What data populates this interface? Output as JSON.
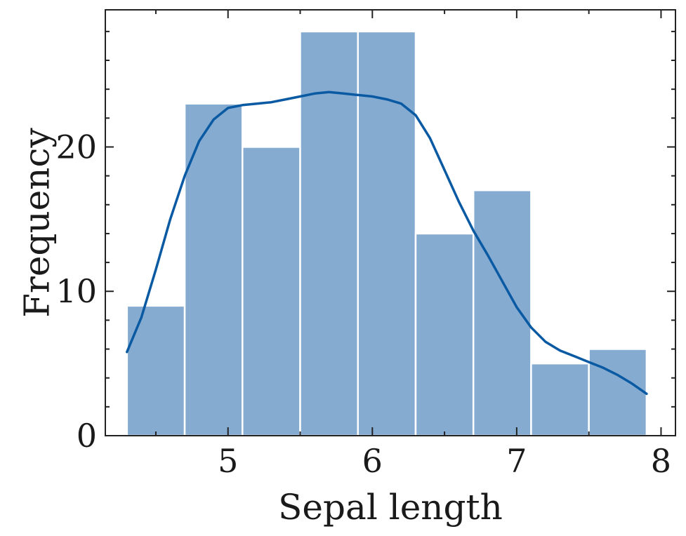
{
  "chart_data": {
    "type": "bar",
    "title": "",
    "xlabel": "Sepal length",
    "ylabel": "Frequency",
    "xlim": [
      4.15,
      8.1
    ],
    "ylim": [
      0,
      29.5
    ],
    "grid": false,
    "bin_edges": [
      4.3,
      4.7,
      5.1,
      5.5,
      5.9,
      6.3,
      6.7,
      7.1,
      7.5,
      7.9
    ],
    "values": [
      9,
      23,
      20,
      28,
      28,
      14,
      17,
      5,
      6
    ],
    "x_ticks": [
      5,
      6,
      7,
      8
    ],
    "x_tick_labels": [
      "5",
      "6",
      "7",
      "8"
    ],
    "y_ticks": [
      0,
      10,
      20
    ],
    "y_tick_labels": [
      "0",
      "10",
      "20"
    ],
    "x_minor_ticks": [
      4.5,
      5.5,
      6.5,
      7.5
    ],
    "y_minor_ticks": [
      2,
      4,
      6,
      8,
      12,
      14,
      16,
      18,
      22,
      24,
      26,
      28
    ],
    "kde": {
      "x": [
        4.3,
        4.4,
        4.5,
        4.6,
        4.7,
        4.8,
        4.9,
        5.0,
        5.1,
        5.2,
        5.3,
        5.4,
        5.5,
        5.6,
        5.7,
        5.8,
        5.9,
        6.0,
        6.1,
        6.2,
        6.3,
        6.4,
        6.5,
        6.6,
        6.7,
        6.8,
        6.9,
        7.0,
        7.1,
        7.2,
        7.3,
        7.4,
        7.5,
        7.6,
        7.7,
        7.8,
        7.9
      ],
      "y": [
        5.8,
        8.2,
        11.5,
        15.0,
        18.0,
        20.4,
        21.9,
        22.7,
        22.9,
        23.0,
        23.1,
        23.3,
        23.5,
        23.7,
        23.8,
        23.7,
        23.6,
        23.5,
        23.3,
        23.0,
        22.2,
        20.6,
        18.4,
        16.2,
        14.2,
        12.5,
        10.7,
        8.9,
        7.5,
        6.5,
        5.9,
        5.5,
        5.1,
        4.7,
        4.2,
        3.6,
        2.9
      ]
    },
    "colors": {
      "bar": "#86abd1",
      "kde": "#0a5aa3"
    }
  }
}
